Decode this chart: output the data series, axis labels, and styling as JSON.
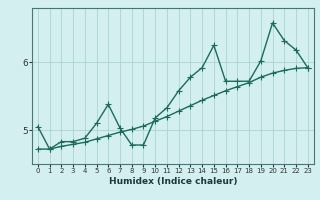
{
  "xlabel": "Humidex (Indice chaleur)",
  "bg_color": "#d4efef",
  "line_color": "#1a6b5a",
  "grid_color": "#aad4d4",
  "x_values": [
    0,
    1,
    2,
    3,
    4,
    5,
    6,
    7,
    8,
    9,
    10,
    11,
    12,
    13,
    14,
    15,
    16,
    17,
    18,
    19,
    20,
    21,
    22,
    23
  ],
  "line1_y": [
    5.05,
    4.72,
    4.83,
    4.83,
    4.88,
    5.1,
    5.38,
    5.03,
    4.78,
    4.78,
    5.18,
    5.33,
    5.58,
    5.78,
    5.92,
    6.25,
    5.72,
    5.72,
    5.72,
    6.02,
    6.58,
    6.32,
    6.18,
    5.92
  ],
  "line2_y": [
    4.72,
    4.72,
    4.76,
    4.79,
    4.82,
    4.87,
    4.92,
    4.97,
    5.01,
    5.06,
    5.13,
    5.2,
    5.28,
    5.36,
    5.44,
    5.51,
    5.58,
    5.64,
    5.7,
    5.78,
    5.84,
    5.88,
    5.91,
    5.92
  ],
  "ylim": [
    4.5,
    6.8
  ],
  "yticks": [
    5,
    6
  ],
  "xticks": [
    0,
    1,
    2,
    3,
    4,
    5,
    6,
    7,
    8,
    9,
    10,
    11,
    12,
    13,
    14,
    15,
    16,
    17,
    18,
    19,
    20,
    21,
    22,
    23
  ],
  "markersize": 2.5,
  "linewidth": 1.0
}
